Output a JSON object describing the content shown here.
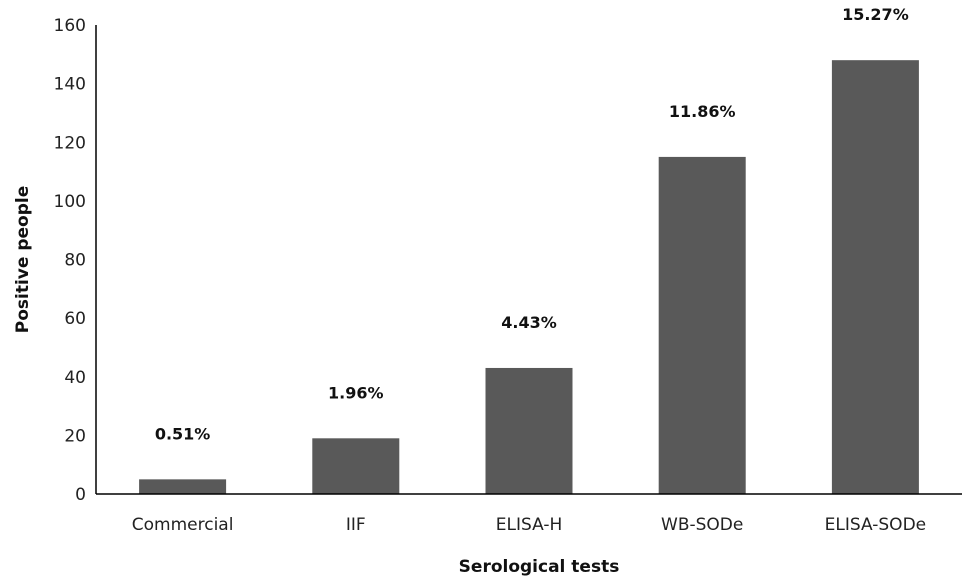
{
  "chart_data": {
    "type": "bar",
    "title": "",
    "xlabel": "Serological tests",
    "ylabel": "Positive people",
    "categories": [
      "Commercial",
      "IIF",
      "ELISA-H",
      "WB-SODe",
      "ELISA-SODe"
    ],
    "values": [
      5,
      19,
      43,
      115,
      148
    ],
    "data_labels": [
      "0.51%",
      "1.96%",
      "4.43%",
      "11.86%",
      "15.27%"
    ],
    "ylim": [
      0,
      160
    ],
    "yticks": [
      "0",
      "20",
      "40",
      "60",
      "80",
      "100",
      "120",
      "140",
      "160"
    ],
    "grid": false,
    "legend": "none",
    "bar_color": "#595959"
  }
}
